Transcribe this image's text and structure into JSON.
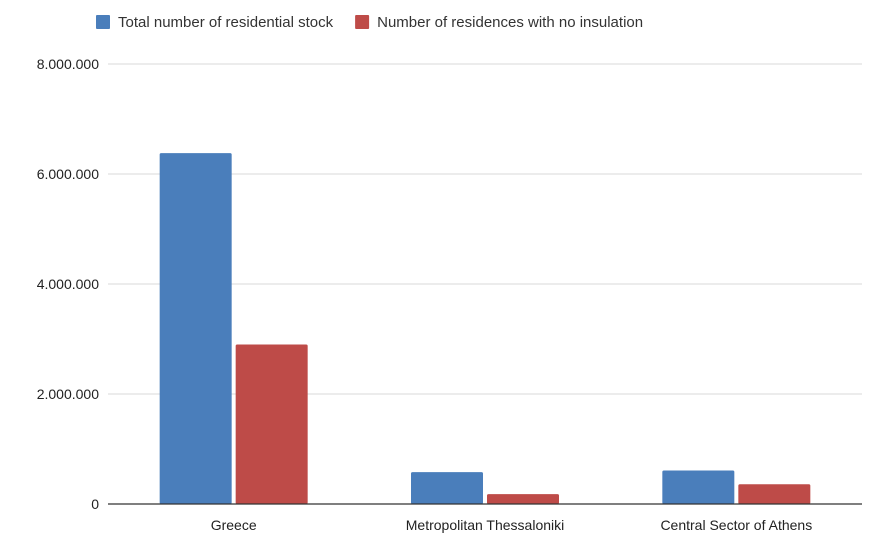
{
  "chart_data": {
    "type": "bar",
    "title": "",
    "xlabel": "",
    "ylabel": "",
    "categories": [
      "Greece",
      "Metropolitan Thessaloniki",
      "Central Sector of Athens"
    ],
    "series": [
      {
        "name": "Total number of residential stock",
        "color": "#4a7ebb",
        "values": [
          6380000,
          580000,
          610000
        ]
      },
      {
        "name": "Number of residences with no insulation",
        "color": "#be4b48",
        "values": [
          2900000,
          180000,
          360000
        ]
      }
    ],
    "ylim": [
      0,
      8000000
    ],
    "yticks": [
      0,
      2000000,
      4000000,
      6000000,
      8000000
    ],
    "ytick_labels": [
      "0",
      "2.000.000",
      "4.000.000",
      "6.000.000",
      "8.000.000"
    ],
    "grid": true,
    "legend_position": "top"
  }
}
